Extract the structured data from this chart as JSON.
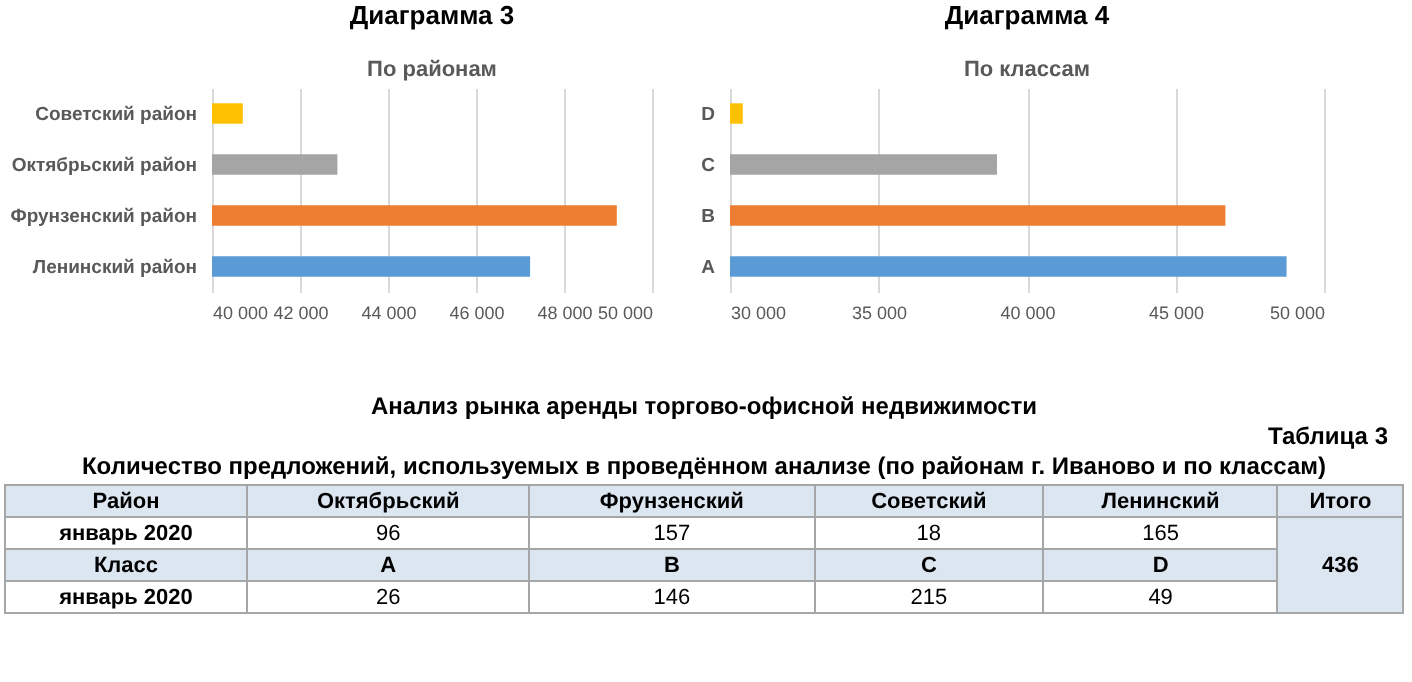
{
  "chart_data": [
    {
      "type": "bar",
      "orientation": "horizontal",
      "title": "Диаграмма 3",
      "subtitle": "По районам",
      "categories": [
        "Советский район",
        "Октябрьский район",
        "Фрунзенский район",
        "Ленинский район"
      ],
      "values": [
        40700,
        42850,
        49200,
        47230
      ],
      "colors": [
        "#ffc000",
        "#a5a5a5",
        "#ed7d31",
        "#5b9bd5"
      ],
      "xlim": [
        40000,
        50000
      ],
      "xticks": [
        {
          "value": 40000,
          "label": "40 000"
        },
        {
          "value": 42000,
          "label": "42 000"
        },
        {
          "value": 44000,
          "label": "44 000"
        },
        {
          "value": 46000,
          "label": "46 000"
        },
        {
          "value": 48000,
          "label": "48 000"
        },
        {
          "value": 50000,
          "label": "50 000"
        }
      ],
      "grid": "x"
    },
    {
      "type": "bar",
      "orientation": "horizontal",
      "title": "Диаграмма 4",
      "subtitle": "По классам",
      "categories": [
        "D",
        "C",
        "B",
        "A"
      ],
      "values": [
        30430,
        38990,
        46680,
        48740
      ],
      "colors": [
        "#ffc000",
        "#a5a5a5",
        "#ed7d31",
        "#5b9bd5"
      ],
      "xlim": [
        30000,
        50000
      ],
      "xticks": [
        {
          "value": 30000,
          "label": "30 000"
        },
        {
          "value": 35000,
          "label": "35 000"
        },
        {
          "value": 40000,
          "label": "40 000"
        },
        {
          "value": 45000,
          "label": "45 000"
        },
        {
          "value": 50000,
          "label": "50 000"
        }
      ],
      "grid": "x"
    },
    {
      "type": "other",
      "title": "Анализ рынка аренды торгово-офисной недвижимости",
      "annotations": [
        "Таблица 3",
        "Количество предложений, используемых в проведённом анализе (по районам г. Иваново и по классам)"
      ],
      "cell_labels": [
        [
          "Район",
          "Октябрьский",
          "Фрунзенский",
          "Советский",
          "Ленинский",
          "Итого"
        ],
        [
          "январь 2020",
          "96",
          "157",
          "18",
          "165",
          "436"
        ],
        [
          "Класс",
          "A",
          "B",
          "C",
          "D",
          null
        ],
        [
          "январь 2020",
          "26",
          "146",
          "215",
          "49",
          null
        ]
      ]
    }
  ]
}
